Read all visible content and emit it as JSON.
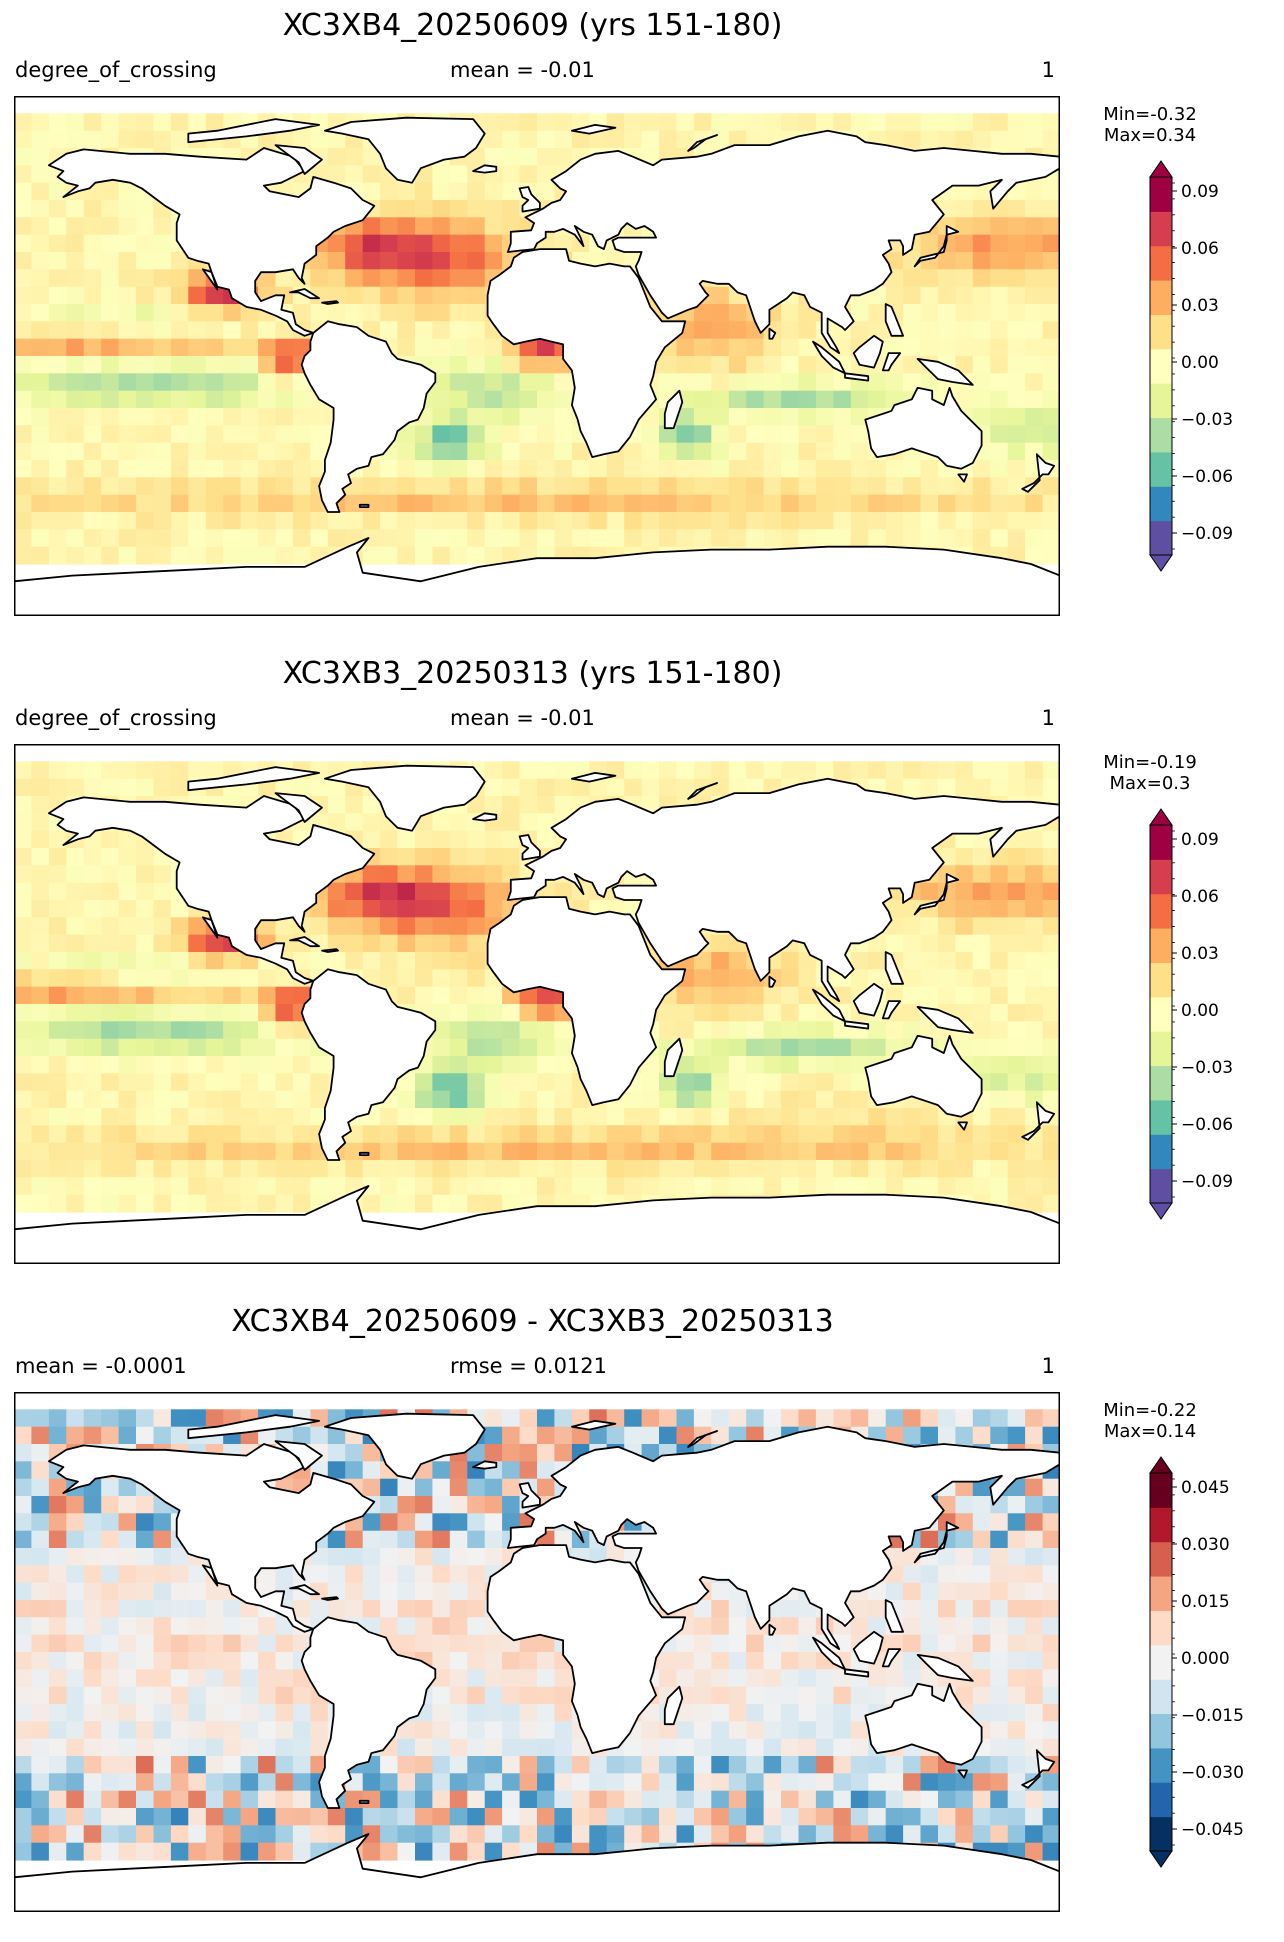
{
  "panels": [
    {
      "title": "XC3XB4_20250609 (yrs 151-180)",
      "left_label": "degree_of_crossing",
      "mid_label": "mean = -0.01",
      "right_label": "1",
      "stats": {
        "min": "Min=-0.32",
        "max": "Max=0.34"
      },
      "colorbar": {
        "ticks": [
          "0.09",
          "0.06",
          "0.03",
          "0.00",
          "−0.03",
          "−0.06",
          "−0.09"
        ],
        "colors": [
          "#5e4fa2",
          "#3288bd",
          "#66c2a5",
          "#abdda4",
          "#e6f598",
          "#ffffbf",
          "#fee08b",
          "#fdae61",
          "#f46d43",
          "#d53e4f",
          "#9e0142"
        ]
      }
    },
    {
      "title": "XC3XB3_20250313 (yrs 151-180)",
      "left_label": "degree_of_crossing",
      "mid_label": "mean = -0.01",
      "right_label": "1",
      "stats": {
        "min": "Min=-0.19",
        "max": "Max=0.3"
      },
      "colorbar": {
        "ticks": [
          "0.09",
          "0.06",
          "0.03",
          "0.00",
          "−0.03",
          "−0.06",
          "−0.09"
        ],
        "colors": [
          "#5e4fa2",
          "#3288bd",
          "#66c2a5",
          "#abdda4",
          "#e6f598",
          "#ffffbf",
          "#fee08b",
          "#fdae61",
          "#f46d43",
          "#d53e4f",
          "#9e0142"
        ]
      }
    },
    {
      "title": "XC3XB4_20250609 - XC3XB3_20250313",
      "left_label": "mean = -0.0001",
      "mid_label": "rmse = 0.0121",
      "right_label": "1",
      "stats": {
        "min": "Min=-0.22",
        "max": "Max=0.14"
      },
      "colorbar": {
        "ticks": [
          "0.045",
          "0.030",
          "0.015",
          "0.000",
          "−0.015",
          "−0.030",
          "−0.045"
        ],
        "colors": [
          "#053061",
          "#2166ac",
          "#4393c3",
          "#92c5de",
          "#d1e5f0",
          "#f2f2f2",
          "#fddbc7",
          "#f4a582",
          "#d6604d",
          "#b2182b",
          "#67001f"
        ]
      }
    }
  ]
}
